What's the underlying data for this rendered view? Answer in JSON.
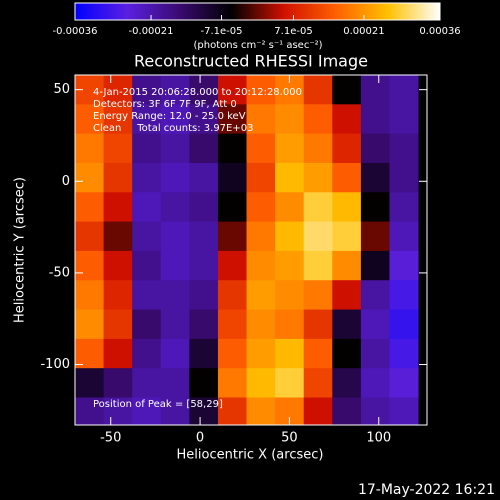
{
  "chart_data": {
    "type": "heatmap",
    "title": "Reconstructed RHESSI Image",
    "x_label": "Heliocentric X (arcsec)",
    "y_label": "Heliocentric Y (arcsec)",
    "colorbar_label": "(photons cm⁻² s⁻¹ asec⁻²)",
    "annotations": [
      "4-Jan-2015 20:06:28.000 to 20:12:28.000",
      "Detectors: 3F 6F 7F 9F, Att 0",
      "Energy Range: 12.0 - 25.0 keV",
      "Clean     Total counts: 3.97E+03"
    ],
    "peak_label": "Position of Peak = [58,29]",
    "footer": "17-May-2022 16:21",
    "xlim": [
      -70,
      127
    ],
    "ylim": [
      -133,
      58
    ],
    "xticks": [
      -50,
      0,
      50,
      100
    ],
    "yticks": [
      -100,
      -50,
      0,
      50
    ],
    "zlim": [
      -0.00036,
      0.00036
    ],
    "zticks": [
      -0.00036,
      -0.00021,
      {
        "value": -7.1e-05,
        "label": "-7.1e-05"
      },
      {
        "value": 7.1e-05,
        "label": "7.1e-05"
      },
      0.00021,
      0.00036
    ],
    "colormap": [
      "#0000ff",
      "#5a20e0",
      "#3a0a70",
      "#000000",
      "#d01000",
      "#ff6000",
      "#ffc000",
      "#ffffff"
    ],
    "x": [
      -62,
      -46,
      -30,
      -14,
      2,
      18,
      34,
      50,
      66,
      82,
      98,
      114
    ],
    "y": [
      50,
      34,
      18,
      2,
      -14,
      -30,
      -46,
      -62,
      -78,
      -94,
      -110,
      -126
    ],
    "z": [
      [
        0.00012,
        8e-05,
        -0.00018,
        -0.0002,
        -0.00015,
        5e-05,
        0.00015,
        0.00018,
        0.0001,
        -5e-05,
        -0.00018,
        -0.0002
      ],
      [
        0.00015,
        0.0001,
        -0.0002,
        -0.00022,
        -0.00018,
        0,
        0.00018,
        0.0002,
        0.00015,
        5e-05,
        -0.00018,
        -0.0002
      ],
      [
        0.00018,
        0.00012,
        -0.00018,
        -0.0002,
        -0.00015,
        -5e-05,
        0.00015,
        0.00022,
        0.00018,
        8e-05,
        -0.00015,
        -0.00018
      ],
      [
        0.0002,
        0.0001,
        -0.0002,
        -0.00022,
        -0.0002,
        -8e-05,
        0.00012,
        0.00025,
        0.00022,
        0.00015,
        -0.0001,
        -0.00018
      ],
      [
        0.00015,
        5e-05,
        -0.00022,
        -0.0002,
        -0.00018,
        -5e-05,
        0.00015,
        0.0002,
        0.00028,
        0.00025,
        -5e-05,
        -0.0002
      ],
      [
        0.0001,
        0,
        -0.0002,
        -0.00022,
        -0.0002,
        0,
        0.00018,
        0.00025,
        0.0003,
        0.00028,
        0,
        -0.00022
      ],
      [
        0.00015,
        5e-05,
        -0.00018,
        -0.00022,
        -0.0002,
        5e-05,
        0.0002,
        0.00022,
        0.00028,
        0.0002,
        -8e-05,
        -0.00025
      ],
      [
        0.00018,
        8e-05,
        -0.0002,
        -0.0002,
        -0.00018,
        0.0001,
        0.00022,
        0.0002,
        0.00018,
        5e-05,
        -0.0002,
        -0.00028
      ],
      [
        0.0002,
        0.0001,
        -0.00015,
        -0.0002,
        -0.00015,
        0.00012,
        0.0002,
        0.00018,
        0.0001,
        -0.0001,
        -0.00022,
        -0.0003
      ],
      [
        0.00015,
        5e-05,
        -0.00018,
        -0.00022,
        -0.0001,
        0.00015,
        0.00022,
        0.00025,
        0.00015,
        -5e-05,
        -0.0002,
        -0.00028
      ],
      [
        -0.0001,
        -0.00015,
        -0.0002,
        -0.0002,
        -5e-05,
        0.00018,
        0.00025,
        0.00028,
        0.00012,
        -0.00012,
        -0.00022,
        -0.00025
      ],
      [
        -0.00018,
        -0.0002,
        -0.00022,
        -0.0002,
        -0.0001,
        0.0001,
        0.0002,
        0.00018,
        5e-05,
        -0.00015,
        -0.0002,
        -0.00022
      ]
    ]
  }
}
